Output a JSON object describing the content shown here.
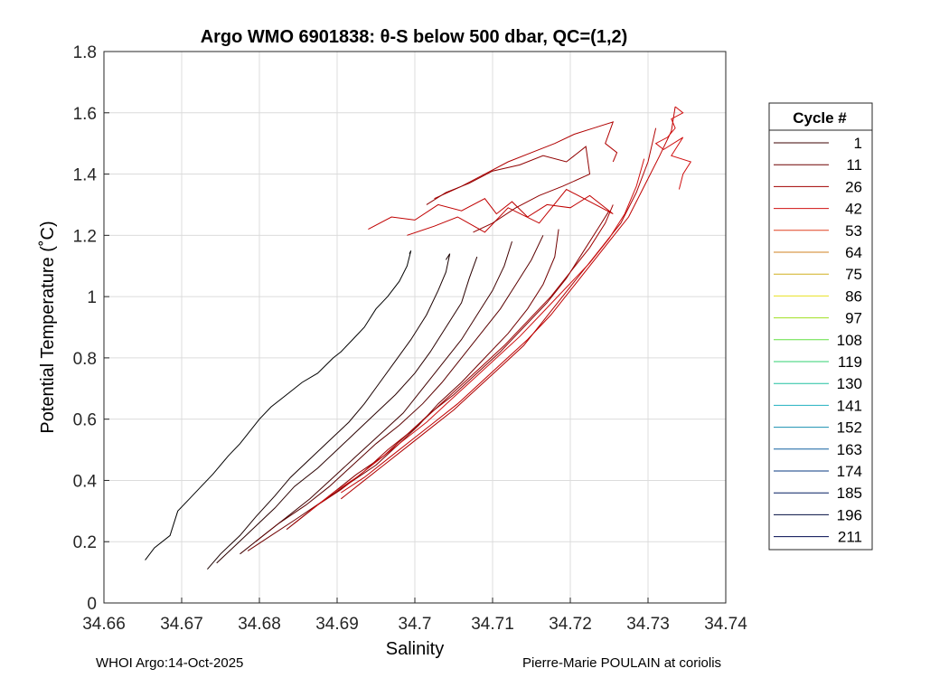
{
  "chart_data": {
    "type": "line",
    "title": "Argo WMO 6901838: θ-S below 500 dbar,  QC=(1,2)",
    "xlabel": "Salinity",
    "ylabel": "Potential Temperature (˚C)",
    "xlim": [
      34.66,
      34.74
    ],
    "ylim": [
      0,
      1.8
    ],
    "xticks": [
      "34.66",
      "34.67",
      "34.68",
      "34.69",
      "34.7",
      "34.71",
      "34.72",
      "34.73",
      "34.74"
    ],
    "yticks": [
      "0",
      "0.2",
      "0.4",
      "0.6",
      "0.8",
      "1",
      "1.2",
      "1.4",
      "1.6",
      "1.8"
    ],
    "grid": true,
    "legend": {
      "title": "Cycle #",
      "placement": "right-outside",
      "entries": [
        {
          "label": "1",
          "color": "#3c0000"
        },
        {
          "label": "11",
          "color": "#6e0000"
        },
        {
          "label": "26",
          "color": "#a00000"
        },
        {
          "label": "42",
          "color": "#d01010"
        },
        {
          "label": "53",
          "color": "#e04020"
        },
        {
          "label": "64",
          "color": "#d08020"
        },
        {
          "label": "75",
          "color": "#d0b020"
        },
        {
          "label": "86",
          "color": "#e8e020"
        },
        {
          "label": "97",
          "color": "#a0e020"
        },
        {
          "label": "108",
          "color": "#60e040"
        },
        {
          "label": "119",
          "color": "#30d070"
        },
        {
          "label": "130",
          "color": "#20c0a0"
        },
        {
          "label": "141",
          "color": "#20b0c0"
        },
        {
          "label": "152",
          "color": "#1890b0"
        },
        {
          "label": "163",
          "color": "#1060a0"
        },
        {
          "label": "174",
          "color": "#0a3a80"
        },
        {
          "label": "185",
          "color": "#051e60"
        },
        {
          "label": "196",
          "color": "#030e40"
        },
        {
          "label": "211",
          "color": "#000a50"
        }
      ]
    },
    "series": [
      {
        "color": "#000000",
        "x": [
          34.6653,
          34.6665,
          34.6685,
          34.6695,
          34.671,
          34.6725,
          34.674,
          34.676,
          34.6775,
          34.68,
          34.6815,
          34.6835,
          34.6855,
          34.6875,
          34.6895,
          34.6905,
          34.692,
          34.6935,
          34.695,
          34.6965,
          34.698,
          34.699,
          34.6995,
          34.6993
        ],
        "y": [
          0.14,
          0.18,
          0.22,
          0.3,
          0.34,
          0.38,
          0.42,
          0.48,
          0.52,
          0.6,
          0.64,
          0.68,
          0.72,
          0.75,
          0.8,
          0.82,
          0.86,
          0.9,
          0.96,
          1.0,
          1.05,
          1.1,
          1.15,
          1.14
        ]
      },
      {
        "color": "#1a0000",
        "x": [
          34.6733,
          34.675,
          34.6775,
          34.6795,
          34.682,
          34.684,
          34.6865,
          34.689,
          34.6915,
          34.6935,
          34.6955,
          34.6975,
          34.6995,
          34.7015,
          34.703,
          34.704,
          34.7045,
          34.704
        ],
        "y": [
          0.11,
          0.16,
          0.22,
          0.28,
          0.35,
          0.41,
          0.47,
          0.53,
          0.59,
          0.65,
          0.72,
          0.79,
          0.86,
          0.94,
          1.02,
          1.08,
          1.14,
          1.12
        ]
      },
      {
        "color": "#2a0000",
        "x": [
          34.6745,
          34.677,
          34.6795,
          34.682,
          34.6845,
          34.6875,
          34.69,
          34.6925,
          34.695,
          34.6975,
          34.7,
          34.702,
          34.704,
          34.706,
          34.707,
          34.708
        ],
        "y": [
          0.13,
          0.19,
          0.25,
          0.31,
          0.38,
          0.44,
          0.5,
          0.56,
          0.62,
          0.68,
          0.75,
          0.82,
          0.9,
          0.98,
          1.06,
          1.13
        ]
      },
      {
        "color": "#400000",
        "x": [
          34.6775,
          34.6805,
          34.6835,
          34.6865,
          34.6895,
          34.6925,
          34.6955,
          34.6985,
          34.701,
          34.7035,
          34.706,
          34.708,
          34.71,
          34.7115,
          34.7125
        ],
        "y": [
          0.16,
          0.22,
          0.28,
          0.34,
          0.41,
          0.48,
          0.55,
          0.62,
          0.7,
          0.78,
          0.86,
          0.94,
          1.02,
          1.1,
          1.18
        ]
      },
      {
        "color": "#5a0000",
        "x": [
          34.6795,
          34.6825,
          34.686,
          34.689,
          34.692,
          34.695,
          34.698,
          34.701,
          34.7035,
          34.706,
          34.7085,
          34.711,
          34.713,
          34.715,
          34.7165
        ],
        "y": [
          0.2,
          0.26,
          0.32,
          0.38,
          0.45,
          0.52,
          0.58,
          0.65,
          0.72,
          0.8,
          0.88,
          0.96,
          1.04,
          1.12,
          1.2
        ]
      },
      {
        "color": "#700000",
        "x": [
          34.6785,
          34.6815,
          34.6845,
          34.688,
          34.6915,
          34.695,
          34.698,
          34.7005,
          34.703,
          34.706,
          34.709,
          34.712,
          34.7145,
          34.7165,
          34.718,
          34.7185
        ],
        "y": [
          0.17,
          0.22,
          0.27,
          0.33,
          0.39,
          0.45,
          0.52,
          0.58,
          0.65,
          0.72,
          0.8,
          0.88,
          0.96,
          1.04,
          1.13,
          1.22
        ]
      },
      {
        "color": "#880000",
        "x": [
          34.6835,
          34.6865,
          34.6895,
          34.6925,
          34.696,
          34.699,
          34.702,
          34.705,
          34.708,
          34.711,
          34.714,
          34.717,
          34.7195,
          34.7215,
          34.7235,
          34.725
        ],
        "y": [
          0.24,
          0.3,
          0.36,
          0.42,
          0.48,
          0.55,
          0.62,
          0.68,
          0.75,
          0.82,
          0.9,
          0.98,
          1.06,
          1.14,
          1.22,
          1.28
        ]
      },
      {
        "color": "#a00000",
        "x": [
          34.6845,
          34.6875,
          34.6905,
          34.6935,
          34.6965,
          34.6995,
          34.7025,
          34.7055,
          34.7085,
          34.7115,
          34.7145,
          34.7175,
          34.72,
          34.7225,
          34.7245,
          34.7255
        ],
        "y": [
          0.26,
          0.32,
          0.37,
          0.43,
          0.5,
          0.56,
          0.63,
          0.7,
          0.77,
          0.84,
          0.92,
          1.0,
          1.08,
          1.16,
          1.24,
          1.3
        ]
      },
      {
        "color": "#b00000",
        "x": [
          34.6905,
          34.693,
          34.696,
          34.699,
          34.702,
          34.705,
          34.708,
          34.711,
          34.714,
          34.7165,
          34.719,
          34.7215,
          34.724,
          34.7265,
          34.7285,
          34.73,
          34.731
        ],
        "y": [
          0.34,
          0.39,
          0.45,
          0.51,
          0.57,
          0.63,
          0.7,
          0.77,
          0.84,
          0.92,
          1.0,
          1.08,
          1.16,
          1.24,
          1.34,
          1.44,
          1.55
        ]
      },
      {
        "color": "#c00000",
        "x": [
          34.6905,
          34.6935,
          34.6965,
          34.6995,
          34.7025,
          34.7055,
          34.7085,
          34.7115,
          34.7145,
          34.7175,
          34.72,
          34.7225,
          34.725,
          34.7275,
          34.7295,
          34.7315,
          34.733,
          34.7335
        ],
        "y": [
          0.36,
          0.41,
          0.47,
          0.53,
          0.59,
          0.65,
          0.72,
          0.79,
          0.86,
          0.94,
          1.02,
          1.1,
          1.18,
          1.26,
          1.36,
          1.46,
          1.54,
          1.62
        ]
      },
      {
        "color": "#d01010",
        "x": [
          34.6865,
          34.6895,
          34.6925,
          34.6955,
          34.6985,
          34.7015,
          34.7045,
          34.7075,
          34.7105,
          34.7135,
          34.7165,
          34.7195,
          34.7225,
          34.725,
          34.727,
          34.7285,
          34.7295
        ],
        "y": [
          0.3,
          0.36,
          0.41,
          0.47,
          0.53,
          0.59,
          0.66,
          0.73,
          0.8,
          0.87,
          0.95,
          1.03,
          1.11,
          1.19,
          1.27,
          1.36,
          1.45
        ]
      },
      {
        "color": "#c00000",
        "x": [
          34.694,
          34.697,
          34.7,
          34.703,
          34.706,
          34.709,
          34.7105,
          34.7125,
          34.7145,
          34.717,
          34.72,
          34.7225,
          34.7255,
          34.7195,
          34.716,
          34.712,
          34.709,
          34.7055,
          34.7025,
          34.699
        ],
        "y": [
          1.22,
          1.26,
          1.25,
          1.3,
          1.28,
          1.32,
          1.27,
          1.31,
          1.26,
          1.3,
          1.29,
          1.33,
          1.27,
          1.35,
          1.24,
          1.29,
          1.21,
          1.26,
          1.23,
          1.2
        ]
      },
      {
        "color": "#b00000",
        "x": [
          34.7025,
          34.706,
          34.709,
          34.712,
          34.715,
          34.718,
          34.7205,
          34.723,
          34.7255,
          34.7245,
          34.726,
          34.7255
        ],
        "y": [
          1.32,
          1.36,
          1.4,
          1.44,
          1.47,
          1.5,
          1.53,
          1.55,
          1.57,
          1.5,
          1.47,
          1.44
        ]
      },
      {
        "color": "#900000",
        "x": [
          34.7015,
          34.704,
          34.707,
          34.71,
          34.7135,
          34.7165,
          34.7195,
          34.722,
          34.7225,
          34.719,
          34.716,
          34.713,
          34.71,
          34.7075
        ],
        "y": [
          1.3,
          1.34,
          1.37,
          1.41,
          1.43,
          1.46,
          1.44,
          1.49,
          1.4,
          1.36,
          1.33,
          1.29,
          1.24,
          1.21
        ]
      },
      {
        "color": "#d01010",
        "x": [
          34.7335,
          34.7345,
          34.733,
          34.7335,
          34.7325,
          34.731,
          34.732,
          34.7345,
          34.733,
          34.7355,
          34.7345,
          34.734
        ],
        "y": [
          1.62,
          1.6,
          1.58,
          1.55,
          1.52,
          1.5,
          1.48,
          1.52,
          1.46,
          1.44,
          1.4,
          1.35
        ]
      }
    ]
  },
  "footer": {
    "left": "WHOI Argo:14-Oct-2025",
    "right": "Pierre-Marie POULAIN at coriolis"
  }
}
